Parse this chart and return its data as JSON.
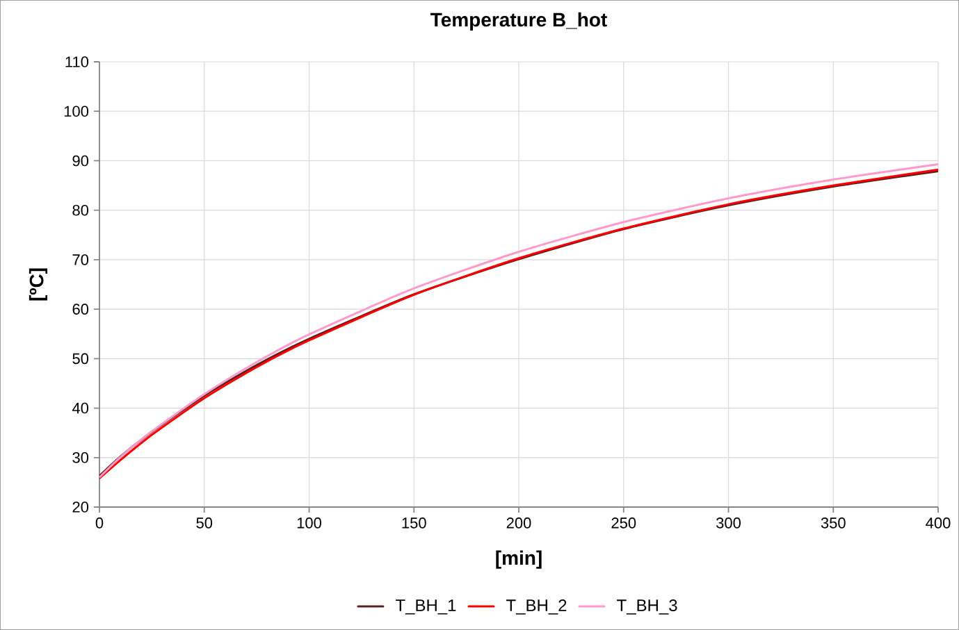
{
  "chart_data": {
    "type": "line",
    "title": "Temperature B_hot",
    "xlabel": "[min]",
    "ylabel": "[ºC]",
    "x": [
      0,
      10,
      25,
      50,
      75,
      100,
      150,
      200,
      250,
      300,
      350,
      400
    ],
    "series": [
      {
        "name": "T_BH_1",
        "color": "#5c1f1f",
        "values": [
          26.3,
          30.2,
          35.2,
          42.5,
          48.7,
          54.0,
          63.0,
          70.1,
          76.2,
          81.0,
          84.8,
          87.9
        ]
      },
      {
        "name": "T_BH_2",
        "color": "#ff0000",
        "values": [
          25.8,
          29.5,
          34.6,
          42.0,
          48.3,
          53.7,
          62.9,
          70.3,
          76.3,
          81.2,
          85.0,
          88.2
        ]
      },
      {
        "name": "T_BH_3",
        "color": "#ff99cc",
        "values": [
          26.0,
          30.1,
          35.3,
          42.8,
          49.3,
          54.9,
          64.2,
          71.6,
          77.6,
          82.4,
          86.2,
          89.3
        ]
      }
    ],
    "xlim": [
      0,
      400
    ],
    "ylim": [
      20,
      110
    ],
    "xticks": [
      0,
      50,
      100,
      150,
      200,
      250,
      300,
      350,
      400
    ],
    "yticks": [
      20,
      30,
      40,
      50,
      60,
      70,
      80,
      90,
      100,
      110
    ],
    "grid": true,
    "legend": "bottom"
  }
}
